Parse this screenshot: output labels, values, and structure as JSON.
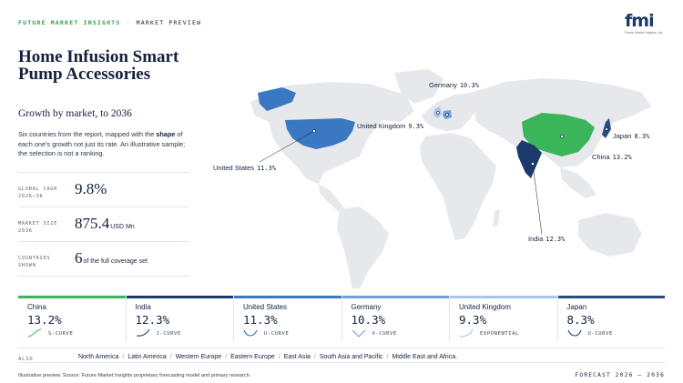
{
  "header": {
    "brand": "FUTURE MARKET INSIGHTS",
    "separator": "·",
    "section": "MARKET PREVIEW",
    "logo_text": "fmi",
    "logo_sub": "Future Market Insights, Inc."
  },
  "title": "Home Infusion Smart Pump Accessories",
  "subtitle": "Growth by market, to 2036",
  "description": {
    "part1": "Six countries from the report, mapped with the ",
    "bold": "shape",
    "part2": " of each one's growth not just its rate. An illustrative sample; the selection is not a ranking."
  },
  "stats": [
    {
      "label": "GLOBAL CAGR 2026–36",
      "value": "9.8%",
      "unit": ""
    },
    {
      "label": "MARKET SIZE 2036",
      "value": "875.4",
      "unit": "USD Mn"
    },
    {
      "label": "COUNTRIES SHOWN",
      "value": "6",
      "unit": "of the full coverage set"
    }
  ],
  "map_labels": {
    "germany": {
      "name": "Germany",
      "pct": "10.3%"
    },
    "uk": {
      "name": "United Kingdom",
      "pct": "9.3%"
    },
    "us": {
      "name": "United States",
      "pct": "11.3%"
    },
    "japan": {
      "name": "Japan",
      "pct": "8.3%"
    },
    "china": {
      "name": "China",
      "pct": "13.2%"
    },
    "india": {
      "name": "India",
      "pct": "12.3%"
    }
  },
  "colors": {
    "china": "#3bb55a",
    "india": "#1b3a6b",
    "us": "#3a78c2",
    "germany": "#6fa0d8",
    "uk": "#a9c6e8",
    "japan": "#2a4a80",
    "land": "#e6e8ec"
  },
  "cards": [
    {
      "name": "China",
      "pct": "13.2%",
      "curve": "S-CURVE",
      "color": "#3bb55a"
    },
    {
      "name": "India",
      "pct": "12.3%",
      "curve": "J-CURVE",
      "color": "#1b3a6b"
    },
    {
      "name": "United States",
      "pct": "11.3%",
      "curve": "U-CURVE",
      "color": "#3a78c2"
    },
    {
      "name": "Germany",
      "pct": "10.3%",
      "curve": "V-CURVE",
      "color": "#6fa0d8"
    },
    {
      "name": "United Kingdom",
      "pct": "9.3%",
      "curve": "EXPONENTIAL",
      "color": "#a9c6e8"
    },
    {
      "name": "Japan",
      "pct": "8.3%",
      "curve": "U-CURVE",
      "color": "#2a4a80"
    }
  ],
  "also": {
    "label": "ALSO",
    "regions": [
      "North America",
      "Latin America",
      "Western Europe",
      "Eastern Europe",
      "East Asia",
      "South Asia and Pacific",
      "Middle East and Africa."
    ]
  },
  "footer": {
    "source": "Illustrative preview. Source: Future Market Insights proprietary forecasting model and primary research.",
    "forecast": "FORECAST 2026 – 2036"
  }
}
